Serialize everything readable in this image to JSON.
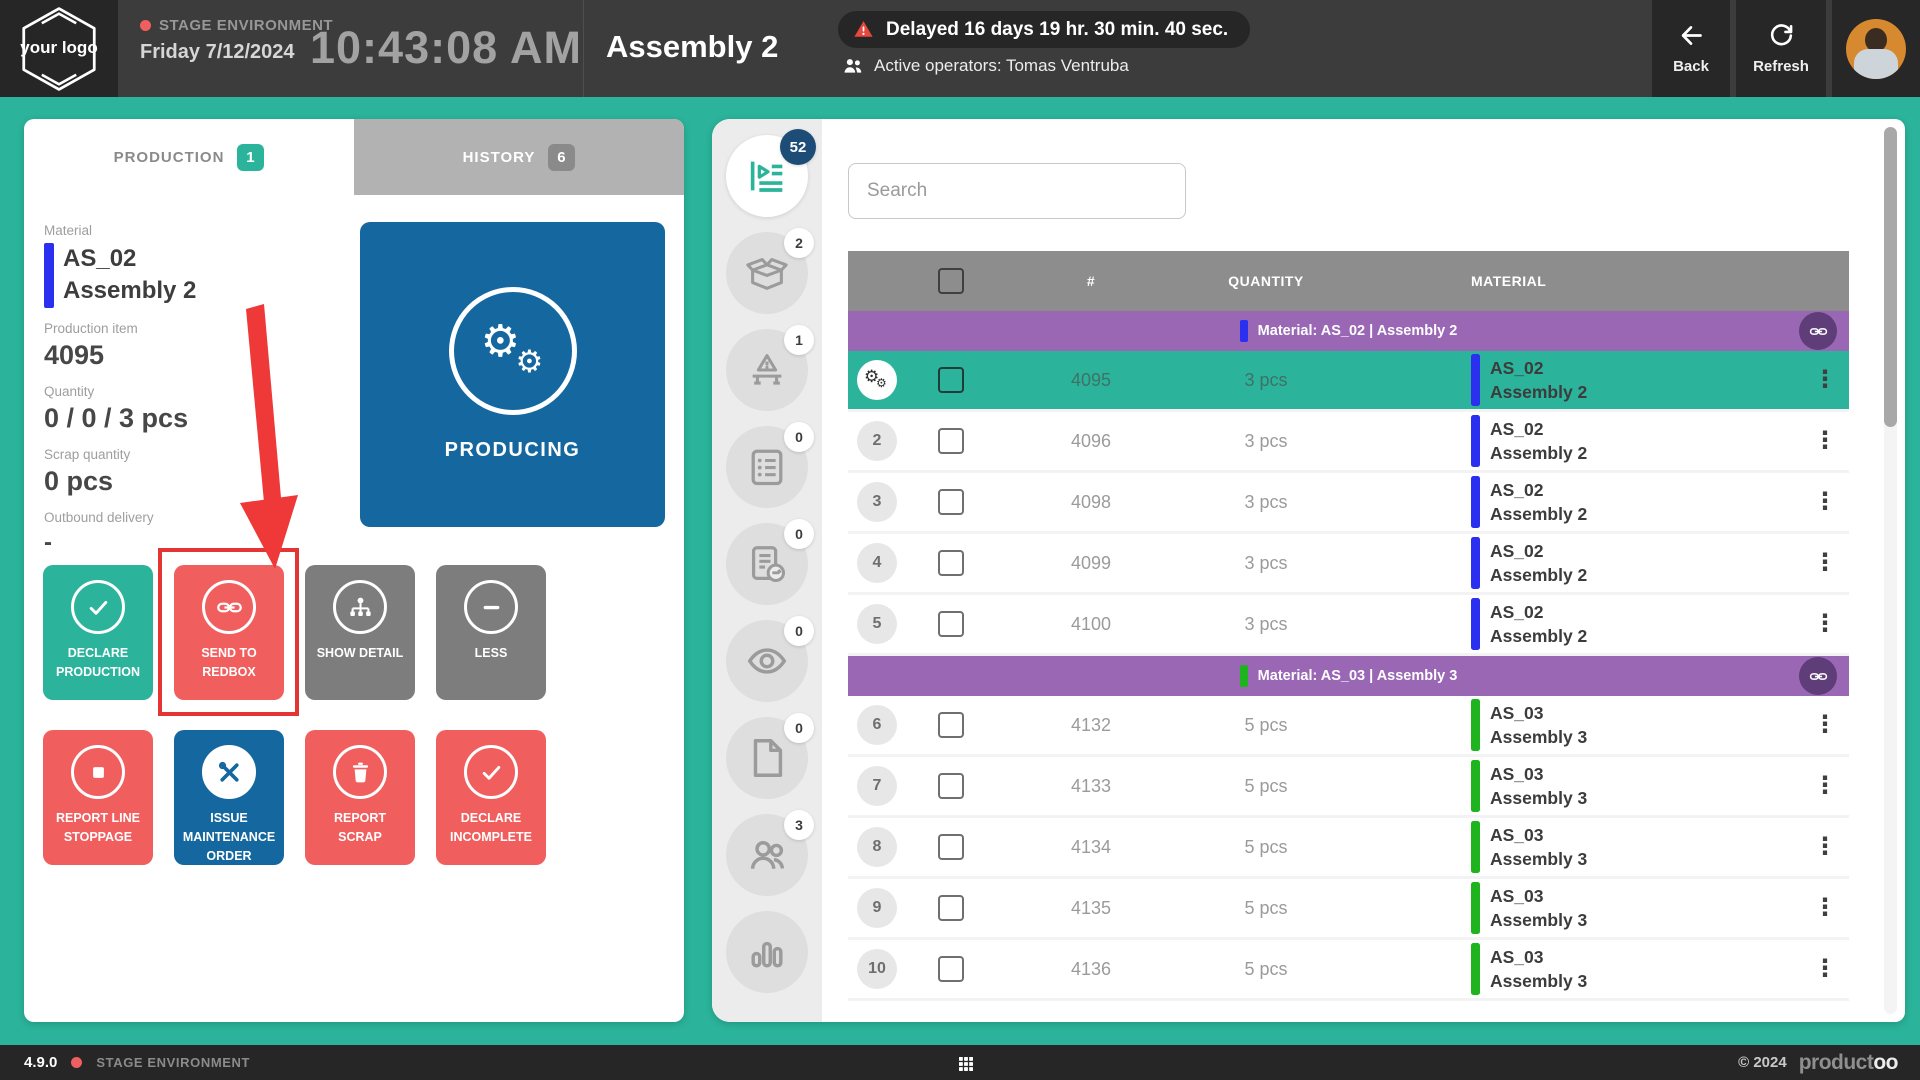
{
  "header": {
    "logo": "your logo",
    "environment": "STAGE ENVIRONMENT",
    "date": "Friday 7/12/2024",
    "time": "10:43:08 AM",
    "title": "Assembly 2",
    "delay_message": "Delayed 16 days 19 hr. 30 min. 40 sec.",
    "active_operators": "Active operators: Tomas Ventruba",
    "back": "Back",
    "refresh": "Refresh"
  },
  "production_panel": {
    "tabs": [
      {
        "label": "PRODUCTION",
        "badge": "1"
      },
      {
        "label": "HISTORY",
        "badge": "6"
      }
    ],
    "info": {
      "material_label": "Material",
      "material_code": "AS_02",
      "material_name": "Assembly 2",
      "material_bar_color": "#2b2ff0",
      "production_item_label": "Production item",
      "production_item": "4095",
      "quantity_label": "Quantity",
      "quantity": "0 / 0 / 3 pcs",
      "scrap_label": "Scrap quantity",
      "scrap": "0 pcs",
      "outbound_label": "Outbound delivery",
      "outbound": "-"
    },
    "status_tile": {
      "label": "PRODUCING",
      "color": "#15689f"
    },
    "action_buttons": [
      {
        "label": "DECLARE PRODUCTION",
        "icon": "i-check",
        "color": "#2bb49b"
      },
      {
        "label": "SEND TO REDBOX",
        "icon": "i-link",
        "color": "#f15e5e",
        "highlighted": true
      },
      {
        "label": "SHOW DETAIL",
        "icon": "i-sitemap",
        "color": "#7d7d7d"
      },
      {
        "label": "LESS",
        "icon": "i-minus",
        "color": "#7d7d7d"
      },
      {
        "label": "REPORT LINE STOPPAGE",
        "icon": "i-stop",
        "color": "#f15e5e"
      },
      {
        "label": "ISSUE MAINTENANCE ORDER",
        "icon": "i-tools",
        "color": "#15689f",
        "filled_icon": true
      },
      {
        "label": "REPORT SCRAP",
        "icon": "i-trash",
        "color": "#f15e5e"
      },
      {
        "label": "DECLARE INCOMPLETE",
        "icon": "i-check",
        "color": "#f15e5e"
      }
    ]
  },
  "rail": {
    "items": [
      {
        "name": "production-queue",
        "icon": "i-queue",
        "badge": "52",
        "active": true
      },
      {
        "name": "packaging",
        "icon": "i-box",
        "badge": "2"
      },
      {
        "name": "line-warning",
        "icon": "i-linewarn",
        "badge": "1"
      },
      {
        "name": "checklists",
        "icon": "i-checklist",
        "badge": "0"
      },
      {
        "name": "work-instructions",
        "icon": "i-dochand",
        "badge": "0"
      },
      {
        "name": "inspections",
        "icon": "i-eye",
        "badge": "0"
      },
      {
        "name": "documents",
        "icon": "i-file",
        "badge": "0"
      },
      {
        "name": "operators",
        "icon": "i-people",
        "badge": "3"
      },
      {
        "name": "statistics",
        "icon": "i-chart",
        "badge": null
      }
    ]
  },
  "worklist": {
    "search_placeholder": "Search",
    "columns": [
      "#",
      "QUANTITY",
      "MATERIAL"
    ],
    "groups": [
      {
        "label": "Material: AS_02 | Assembly 2",
        "bar_color": "#2b2ff0",
        "rows": [
          {
            "num": "",
            "id": "4095",
            "qty": "3 pcs",
            "code": "AS_02",
            "name": "Assembly 2",
            "selected": true
          },
          {
            "num": "2",
            "id": "4096",
            "qty": "3 pcs",
            "code": "AS_02",
            "name": "Assembly 2"
          },
          {
            "num": "3",
            "id": "4098",
            "qty": "3 pcs",
            "code": "AS_02",
            "name": "Assembly 2"
          },
          {
            "num": "4",
            "id": "4099",
            "qty": "3 pcs",
            "code": "AS_02",
            "name": "Assembly 2"
          },
          {
            "num": "5",
            "id": "4100",
            "qty": "3 pcs",
            "code": "AS_02",
            "name": "Assembly 2"
          }
        ]
      },
      {
        "label": "Material: AS_03 | Assembly 3",
        "bar_color": "#1db41d",
        "rows": [
          {
            "num": "6",
            "id": "4132",
            "qty": "5 pcs",
            "code": "AS_03",
            "name": "Assembly 3"
          },
          {
            "num": "7",
            "id": "4133",
            "qty": "5 pcs",
            "code": "AS_03",
            "name": "Assembly 3"
          },
          {
            "num": "8",
            "id": "4134",
            "qty": "5 pcs",
            "code": "AS_03",
            "name": "Assembly 3"
          },
          {
            "num": "9",
            "id": "4135",
            "qty": "5 pcs",
            "code": "AS_03",
            "name": "Assembly 3"
          },
          {
            "num": "10",
            "id": "4136",
            "qty": "5 pcs",
            "code": "AS_03",
            "name": "Assembly 3"
          }
        ]
      }
    ]
  },
  "footer": {
    "version": "4.9.0",
    "environment": "STAGE ENVIRONMENT",
    "copyright": "© 2024",
    "brand_gray": "product",
    "brand_white": "oo"
  },
  "colors": {
    "accent_teal": "#2bb49b",
    "accent_red": "#f15e5e",
    "accent_blue": "#15689f",
    "group_purple": "#9a67b5",
    "badge_navy": "#1d4d77"
  }
}
